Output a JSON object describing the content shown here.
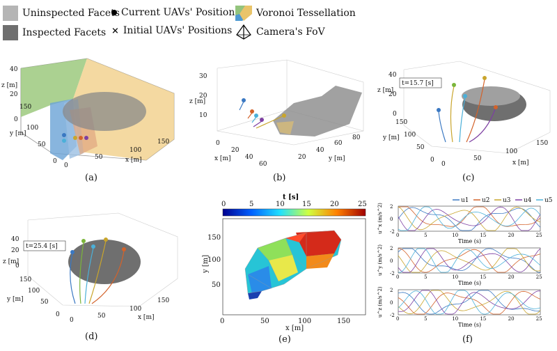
{
  "legend": {
    "uninspected": "Uninspected Facets",
    "inspected": "Inspected Facets",
    "current": "Current UAVs' Positions",
    "initial": "Initial UAVs' Positions",
    "voronoi": "Voronoi Tessellation",
    "fov": "Camera's FoV",
    "colors": {
      "uninspected": "#b5b5b5",
      "inspected": "#6f6f6f",
      "mesh": "#8a8a8a"
    }
  },
  "panels": {
    "a": {
      "label": "(a)",
      "z_axis": "z [m]",
      "y_axis": "y [m]",
      "x_axis": "x [m]",
      "z_ticks": [
        "40",
        "20",
        "0"
      ],
      "y_ticks": [
        "150",
        "100",
        "50",
        "0"
      ],
      "x_ticks": [
        "0",
        "50",
        "100",
        "150"
      ]
    },
    "b": {
      "label": "(b)",
      "z_axis": "z [m]",
      "x_axis": "x [m]",
      "y_axis": "y [m]",
      "z_ticks": [
        "30",
        "20",
        "10"
      ],
      "x_ticks": [
        "0",
        "20",
        "40",
        "60"
      ],
      "y_ticks": [
        "20",
        "40",
        "60",
        "80"
      ]
    },
    "c": {
      "label": "(c)",
      "time": "t=15.7 [s]",
      "z_axis": "z [m]",
      "y_axis": "y [m]",
      "x_axis": "x [m]",
      "z_ticks": [
        "40",
        "20",
        "0"
      ],
      "y_ticks": [
        "150",
        "100",
        "50",
        "0"
      ],
      "x_ticks": [
        "0",
        "50",
        "100",
        "150"
      ]
    },
    "d": {
      "label": "(d)",
      "time": "t=25.4 [s]",
      "z_axis": "z [m]",
      "y_axis": "y [m]",
      "x_axis": "x [m]",
      "z_ticks": [
        "40",
        "20",
        "0"
      ],
      "y_ticks": [
        "150",
        "100",
        "50",
        "0"
      ],
      "x_ticks": [
        "0",
        "50",
        "100",
        "150"
      ]
    },
    "e": {
      "label": "(e)",
      "colorbar_title": "t [s]",
      "colorbar_ticks": [
        "0",
        "5",
        "10",
        "15",
        "20",
        "25"
      ],
      "x_axis": "x [m]",
      "y_axis": "y [m]",
      "x_ticks": [
        "0",
        "50",
        "100",
        "150"
      ],
      "y_ticks": [
        "50",
        "100",
        "150"
      ]
    },
    "f": {
      "label": "(f)",
      "legend": [
        "u1",
        "u2",
        "u3",
        "u4",
        "u5"
      ],
      "ylabels": [
        "u^x (m/s^2)",
        "u^y (m/s^2)",
        "u^z (m/s^2)"
      ],
      "xlabel": "Time (s)",
      "x_ticks": [
        "0",
        "5",
        "10",
        "15",
        "20",
        "25"
      ],
      "y_ticks": [
        "2",
        "0",
        "-2"
      ]
    }
  },
  "chart_data": {
    "type": "line",
    "title": "",
    "xlabel": "Time (s)",
    "xlim": [
      0,
      25.4
    ],
    "ylim": [
      -2,
      2
    ],
    "series_colors": [
      "#3a78c2",
      "#d3622a",
      "#c9a52c",
      "#7d3fa2",
      "#4bb0d9"
    ],
    "subplots": [
      {
        "ylabel": "u^x (m/s^2)"
      },
      {
        "ylabel": "u^y (m/s^2)"
      },
      {
        "ylabel": "u^z (m/s^2)"
      }
    ],
    "series": [
      {
        "name": "u1"
      },
      {
        "name": "u2"
      },
      {
        "name": "u3"
      },
      {
        "name": "u4"
      },
      {
        "name": "u5"
      }
    ]
  }
}
